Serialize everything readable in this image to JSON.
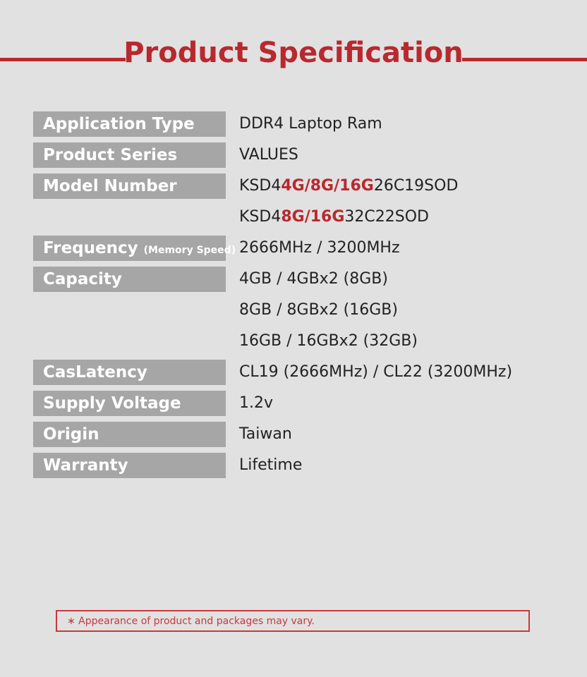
{
  "title": "Product Specification",
  "colors": {
    "accent": "#b8292f",
    "label_bg": "#a6a6a6",
    "background": "#e1e1e1"
  },
  "rows": [
    {
      "label": "Application Type",
      "value": [
        {
          "text": "DDR4 Laptop Ram"
        }
      ]
    },
    {
      "label": "Product Series",
      "value": [
        {
          "text": "VALUES"
        }
      ]
    },
    {
      "label": "Model Number",
      "value": [
        {
          "text": "KSD4"
        },
        {
          "text": "4G/8G/16G",
          "hl": true
        },
        {
          "text": "26C19SOD"
        }
      ]
    },
    {
      "label": "",
      "value": [
        {
          "text": "KSD4"
        },
        {
          "text": "8G/16G",
          "hl": true
        },
        {
          "text": "32C22SOD"
        }
      ]
    },
    {
      "label": "Frequency",
      "label_small": "(Memory Speed)",
      "value": [
        {
          "text": "2666MHz / 3200MHz"
        }
      ]
    },
    {
      "label": "Capacity",
      "value": [
        {
          "text": "4GB / 4GBx2 (8GB)"
        }
      ]
    },
    {
      "label": "",
      "value": [
        {
          "text": "8GB /  8GBx2 (16GB)"
        }
      ]
    },
    {
      "label": "",
      "value": [
        {
          "text": "16GB /  16GBx2 (32GB)"
        }
      ]
    },
    {
      "label": "CasLatency",
      "value": [
        {
          "text": "CL19 (2666MHz) / CL22 (3200MHz)"
        }
      ]
    },
    {
      "label": "Supply Voltage",
      "value": [
        {
          "text": "1.2v"
        }
      ]
    },
    {
      "label": "Origin",
      "value": [
        {
          "text": "Taiwan"
        }
      ]
    },
    {
      "label": "Warranty",
      "value": [
        {
          "text": "Lifetime"
        }
      ]
    }
  ],
  "note": "∗ Appearance of product and packages may vary."
}
